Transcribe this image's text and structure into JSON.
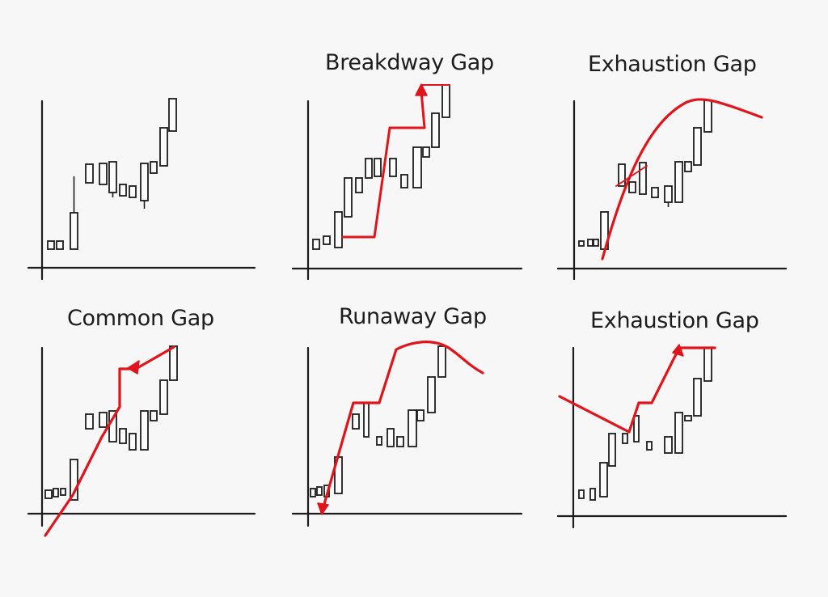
{
  "colors": {
    "ink": "#1c1c1c",
    "accent": "#e0141b",
    "background": "#f7f7f7"
  },
  "panels": [
    {
      "id": "top-left",
      "title": ""
    },
    {
      "id": "top-middle",
      "title": "Breakdway Gap"
    },
    {
      "id": "top-right",
      "title": "Exhaustion Gap"
    },
    {
      "id": "bottom-left",
      "title": "Common Gap"
    },
    {
      "id": "bottom-middle",
      "title": "Runaway Gap"
    },
    {
      "id": "bottom-right",
      "title": "Exhaustion Gap"
    }
  ]
}
